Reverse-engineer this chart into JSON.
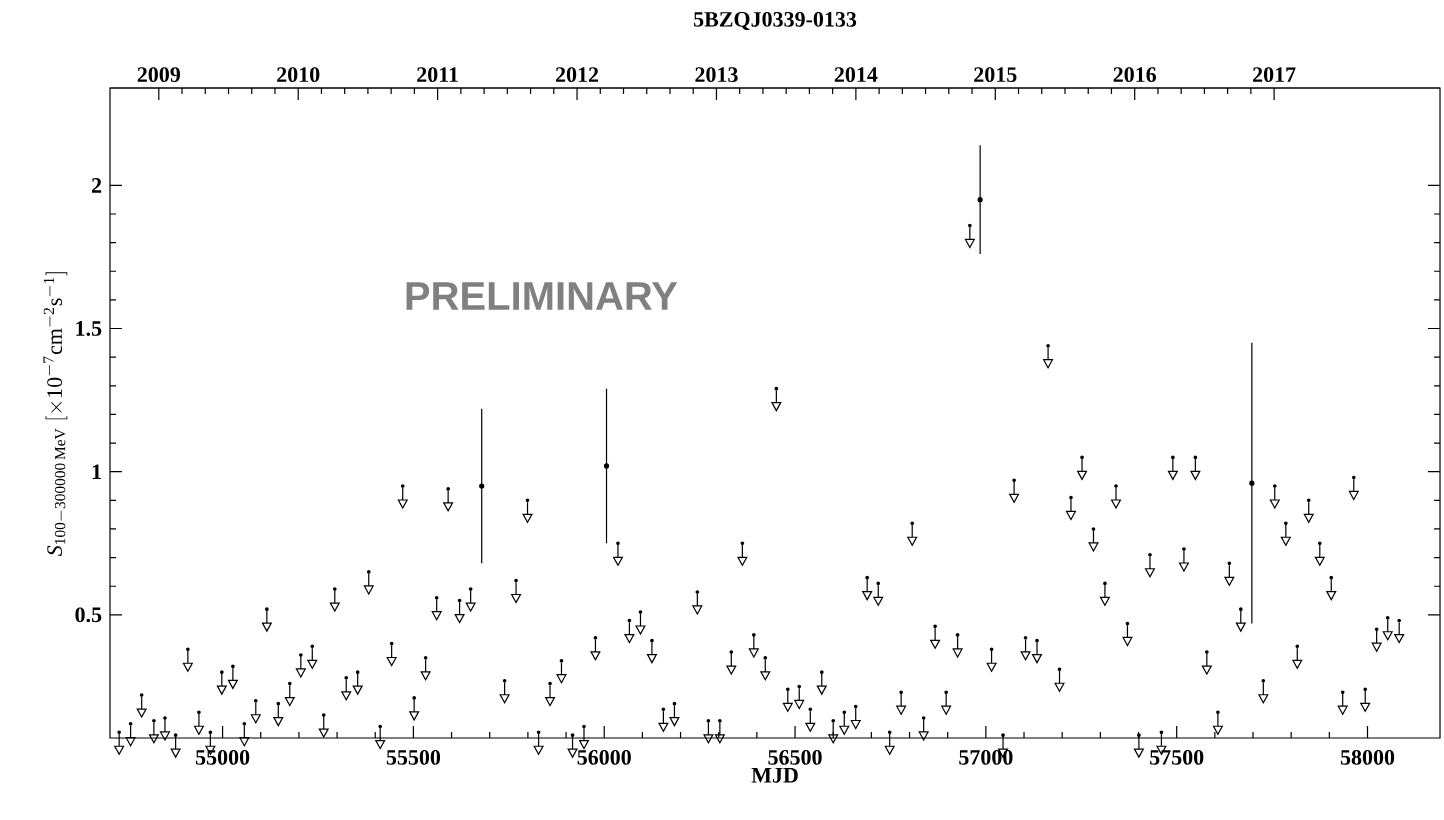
{
  "chart_data": {
    "type": "scatter",
    "title": "5BZQJ0339-0133",
    "xlabel": "MJD",
    "ylabel": "\\mathit{S}_{\\mathrm{100}-\\mathrm{300000\\,MeV}}\\ [\\times\\mathrm{10}^{-\\mathrm{7}}\\mathrm{cm}^{-\\mathrm{2}}\\mathrm{s}^{-\\mathrm{1}}]",
    "xlim": [
      54705,
      58190
    ],
    "xticks": [
      55000,
      55500,
      56000,
      56500,
      57000,
      57500,
      58000
    ],
    "x2lim": [
      2008.65,
      2018.19
    ],
    "x2ticks": [
      2009,
      2010,
      2011,
      2012,
      2013,
      2014,
      2015,
      2016,
      2017
    ],
    "ylim": [
      0.07,
      2.34
    ],
    "yticks": [
      0.5,
      1,
      1.5,
      2
    ],
    "annotations": [
      "PRELIMINARY"
    ],
    "series": [
      {
        "marker": "triangle",
        "color": "#000000",
        "x": [
          54729,
          54759,
          54788,
          54820,
          54849,
          54877,
          54909,
          54938,
          54968,
          54998,
          55027,
          55057,
          55087,
          55116,
          55146,
          55176,
          55205,
          55235,
          55265,
          55294,
          55324,
          55354,
          55383,
          55413,
          55443,
          55472,
          55502,
          55532,
          55561,
          55591,
          55621,
          55650,
          55739,
          55769,
          55799,
          55828,
          55858,
          55888,
          55917,
          55947,
          55977,
          56036,
          56066,
          56095,
          56125,
          56155,
          56184,
          56244,
          56273,
          56303,
          56333,
          56362,
          56392,
          56422,
          56451,
          56481,
          56511,
          56540,
          56570,
          56600,
          56629,
          56659,
          56689,
          56718,
          56748,
          56778,
          56807,
          56837,
          56867,
          56896,
          56926,
          56958,
          57015,
          57045,
          57074,
          57104,
          57134,
          57163,
          57193,
          57223,
          57252,
          57282,
          57312,
          57341,
          57371,
          57401,
          57430,
          57460,
          57490,
          57519,
          57549,
          57579,
          57608,
          57638,
          57668,
          57727,
          57757,
          57786,
          57816,
          57846,
          57875,
          57905,
          57935,
          57964,
          57994,
          58024,
          58053,
          58083
        ],
        "values": [
          0.09,
          0.12,
          0.22,
          0.13,
          0.14,
          0.08,
          0.38,
          0.16,
          0.09,
          0.3,
          0.32,
          0.12,
          0.2,
          0.52,
          0.19,
          0.26,
          0.36,
          0.39,
          0.15,
          0.59,
          0.28,
          0.3,
          0.65,
          0.11,
          0.4,
          0.95,
          0.21,
          0.35,
          0.56,
          0.94,
          0.55,
          0.59,
          0.27,
          0.62,
          0.9,
          0.09,
          0.26,
          0.34,
          0.08,
          0.11,
          0.42,
          0.75,
          0.48,
          0.51,
          0.41,
          0.17,
          0.19,
          0.58,
          0.13,
          0.13,
          0.37,
          0.75,
          0.43,
          0.35,
          1.29,
          0.24,
          0.25,
          0.17,
          0.3,
          0.13,
          0.16,
          0.18,
          0.63,
          0.61,
          0.09,
          0.23,
          0.82,
          0.14,
          0.46,
          0.23,
          0.43,
          1.86,
          0.38,
          0.08,
          0.97,
          0.42,
          0.41,
          1.44,
          0.31,
          0.91,
          1.05,
          0.8,
          0.61,
          0.95,
          0.47,
          0.08,
          0.71,
          0.09,
          1.05,
          0.73,
          1.05,
          0.37,
          0.16,
          0.68,
          0.52,
          0.27,
          0.95,
          0.82,
          0.39,
          0.9,
          0.75,
          0.63,
          0.23,
          0.98,
          0.24,
          0.45,
          0.49,
          0.48
        ]
      },
      {
        "marker": "circle",
        "color": "#000000",
        "x": [
          55679,
          56006,
          56985,
          57697
        ],
        "values": [
          0.95,
          1.02,
          1.95,
          0.96
        ],
        "errors": [
          0.27,
          0.27,
          0.19,
          0.49
        ]
      }
    ]
  }
}
